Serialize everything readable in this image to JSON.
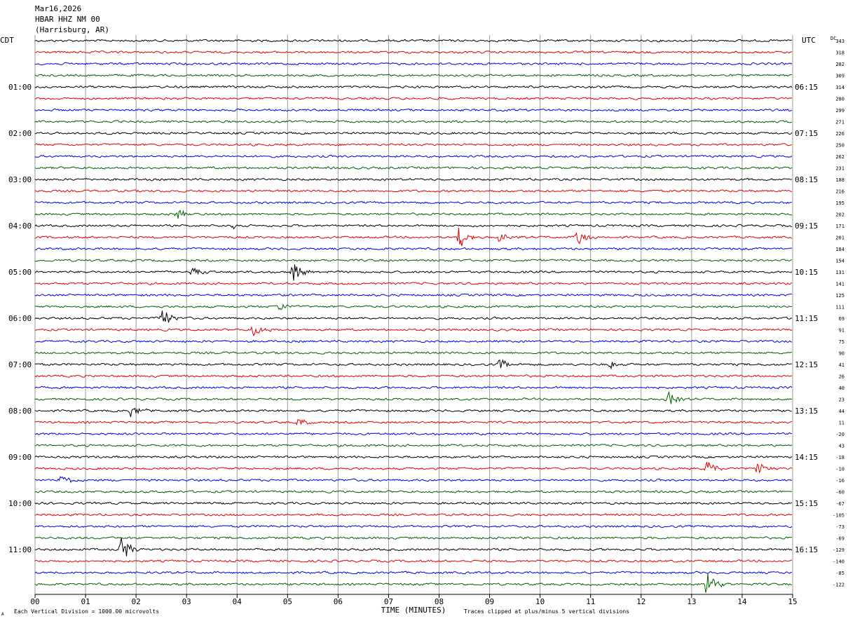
{
  "header": {
    "date": "Mar16,2026",
    "station": "HBAR HHZ NM 00",
    "location": "(Harrisburg, AR)"
  },
  "left_tz": "CDT",
  "right_tz": "UTC",
  "dc_label": "DC",
  "footer": {
    "scale_note": "Each Vertical Division = 1000.00 microvolts",
    "clip_note": "Traces clipped at plus/minus 5 vertical divisions",
    "corner_mark": "A"
  },
  "chart_data": {
    "type": "line",
    "title": "",
    "xlabel": "TIME (MINUTES)",
    "ylabel": "",
    "x_ticks": [
      "00",
      "01",
      "02",
      "03",
      "04",
      "05",
      "06",
      "07",
      "08",
      "09",
      "10",
      "11",
      "12",
      "13",
      "14",
      "15"
    ],
    "xlim": [
      0,
      15
    ],
    "grid": true,
    "trace_colors": [
      "#000000",
      "#e00000",
      "#0000e0",
      "#006000"
    ],
    "left_hour_labels": [
      "01:00",
      "02:00",
      "03:00",
      "04:00",
      "05:00",
      "06:00",
      "07:00",
      "08:00",
      "09:00",
      "10:00",
      "11:00"
    ],
    "right_hour_labels": [
      "06:15",
      "07:15",
      "08:15",
      "09:15",
      "10:15",
      "11:15",
      "12:15",
      "13:15",
      "14:15",
      "15:15",
      "16:15"
    ],
    "dc_offsets": [
      "343",
      "318",
      "282",
      "309",
      "314",
      "280",
      "299",
      "271",
      "226",
      "250",
      "262",
      "231",
      "188",
      "216",
      "195",
      "202",
      "171",
      "201",
      "184",
      "154",
      "131",
      "141",
      "125",
      "111",
      "69",
      "91",
      "75",
      "90",
      "41",
      "26",
      "40",
      "23",
      "44",
      "11",
      "-20",
      "43",
      "-18",
      "-10",
      "-16",
      "-60",
      "-67",
      "-105",
      "-73",
      "-69",
      "-129",
      "-140",
      "-85",
      "-122"
    ],
    "events": [
      {
        "trace": 15,
        "minute": 2.8,
        "amp": 1.2
      },
      {
        "trace": 16,
        "minute": 3.9,
        "amp": 0.6
      },
      {
        "trace": 17,
        "minute": 8.4,
        "amp": 2.6
      },
      {
        "trace": 17,
        "minute": 9.2,
        "amp": 1.3
      },
      {
        "trace": 17,
        "minute": 10.7,
        "amp": 2.4
      },
      {
        "trace": 20,
        "minute": 3.1,
        "amp": 1.4
      },
      {
        "trace": 20,
        "minute": 5.1,
        "amp": 2.2
      },
      {
        "trace": 23,
        "minute": 4.8,
        "amp": 1.2
      },
      {
        "trace": 24,
        "minute": 2.5,
        "amp": 2.6
      },
      {
        "trace": 25,
        "minute": 4.3,
        "amp": 1.5
      },
      {
        "trace": 28,
        "minute": 9.2,
        "amp": 1.2
      },
      {
        "trace": 28,
        "minute": 11.4,
        "amp": 0.8
      },
      {
        "trace": 31,
        "minute": 12.5,
        "amp": 2.0
      },
      {
        "trace": 32,
        "minute": 1.9,
        "amp": 1.3
      },
      {
        "trace": 33,
        "minute": 5.2,
        "amp": 0.9
      },
      {
        "trace": 37,
        "minute": 13.3,
        "amp": 2.0
      },
      {
        "trace": 37,
        "minute": 14.3,
        "amp": 1.5
      },
      {
        "trace": 38,
        "minute": 0.5,
        "amp": 1.4
      },
      {
        "trace": 44,
        "minute": 1.7,
        "amp": 3.2
      },
      {
        "trace": 47,
        "minute": 13.3,
        "amp": 3.8
      }
    ]
  }
}
